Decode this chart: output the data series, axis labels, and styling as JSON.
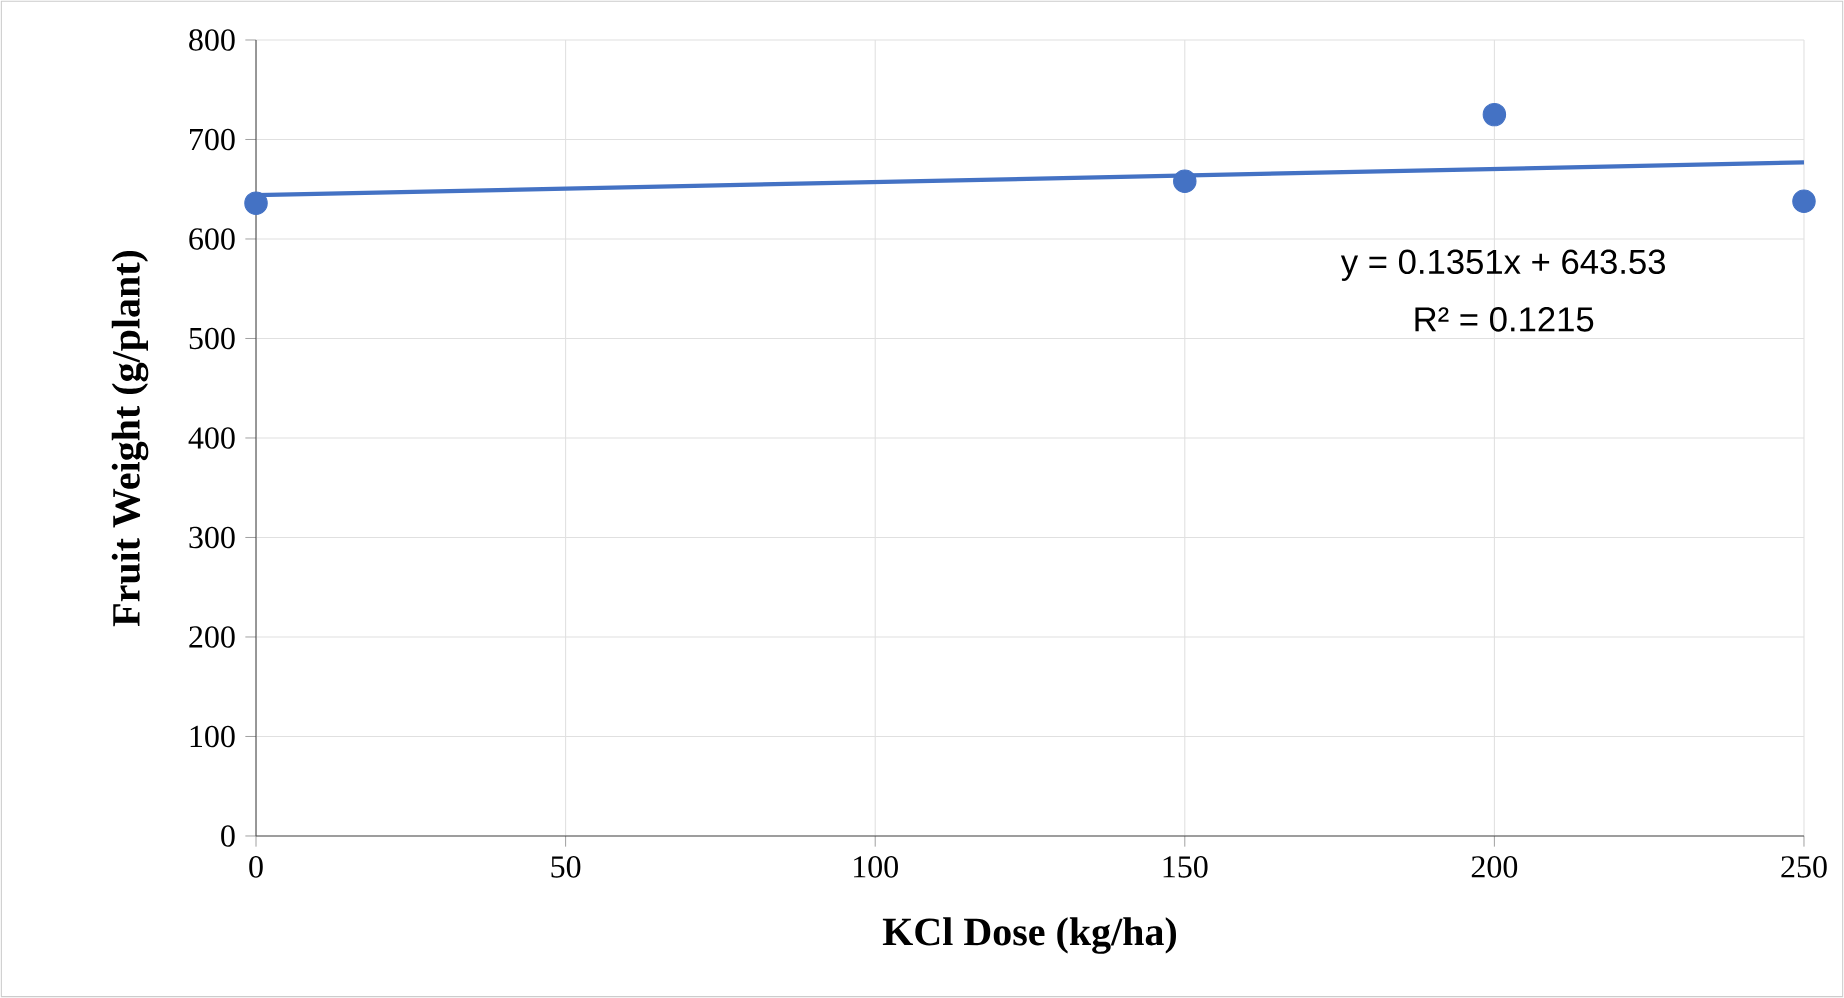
{
  "chart_data": {
    "type": "scatter",
    "xlabel": "KCl Dose (kg/ha)",
    "ylabel": "Fruit Weight (g/plant)",
    "xlim": [
      0,
      250
    ],
    "xticks": [
      0,
      50,
      100,
      150,
      200,
      250
    ],
    "ylim": [
      0,
      800
    ],
    "yticks": [
      0,
      100,
      200,
      300,
      400,
      500,
      600,
      700,
      800
    ],
    "grid": true,
    "marker": "circle",
    "series": [
      {
        "color": "#4472c4",
        "x": [
          0,
          150,
          200,
          250
        ],
        "values": [
          636,
          658,
          725,
          638
        ]
      },
      {
        "type": "line",
        "color": "#4472c4",
        "marker": "none",
        "x": [
          0,
          250
        ],
        "values": [
          644,
          677
        ]
      }
    ],
    "annotations": [
      "y = 0.1351x + 643.53",
      "R² = 0.1215"
    ]
  }
}
